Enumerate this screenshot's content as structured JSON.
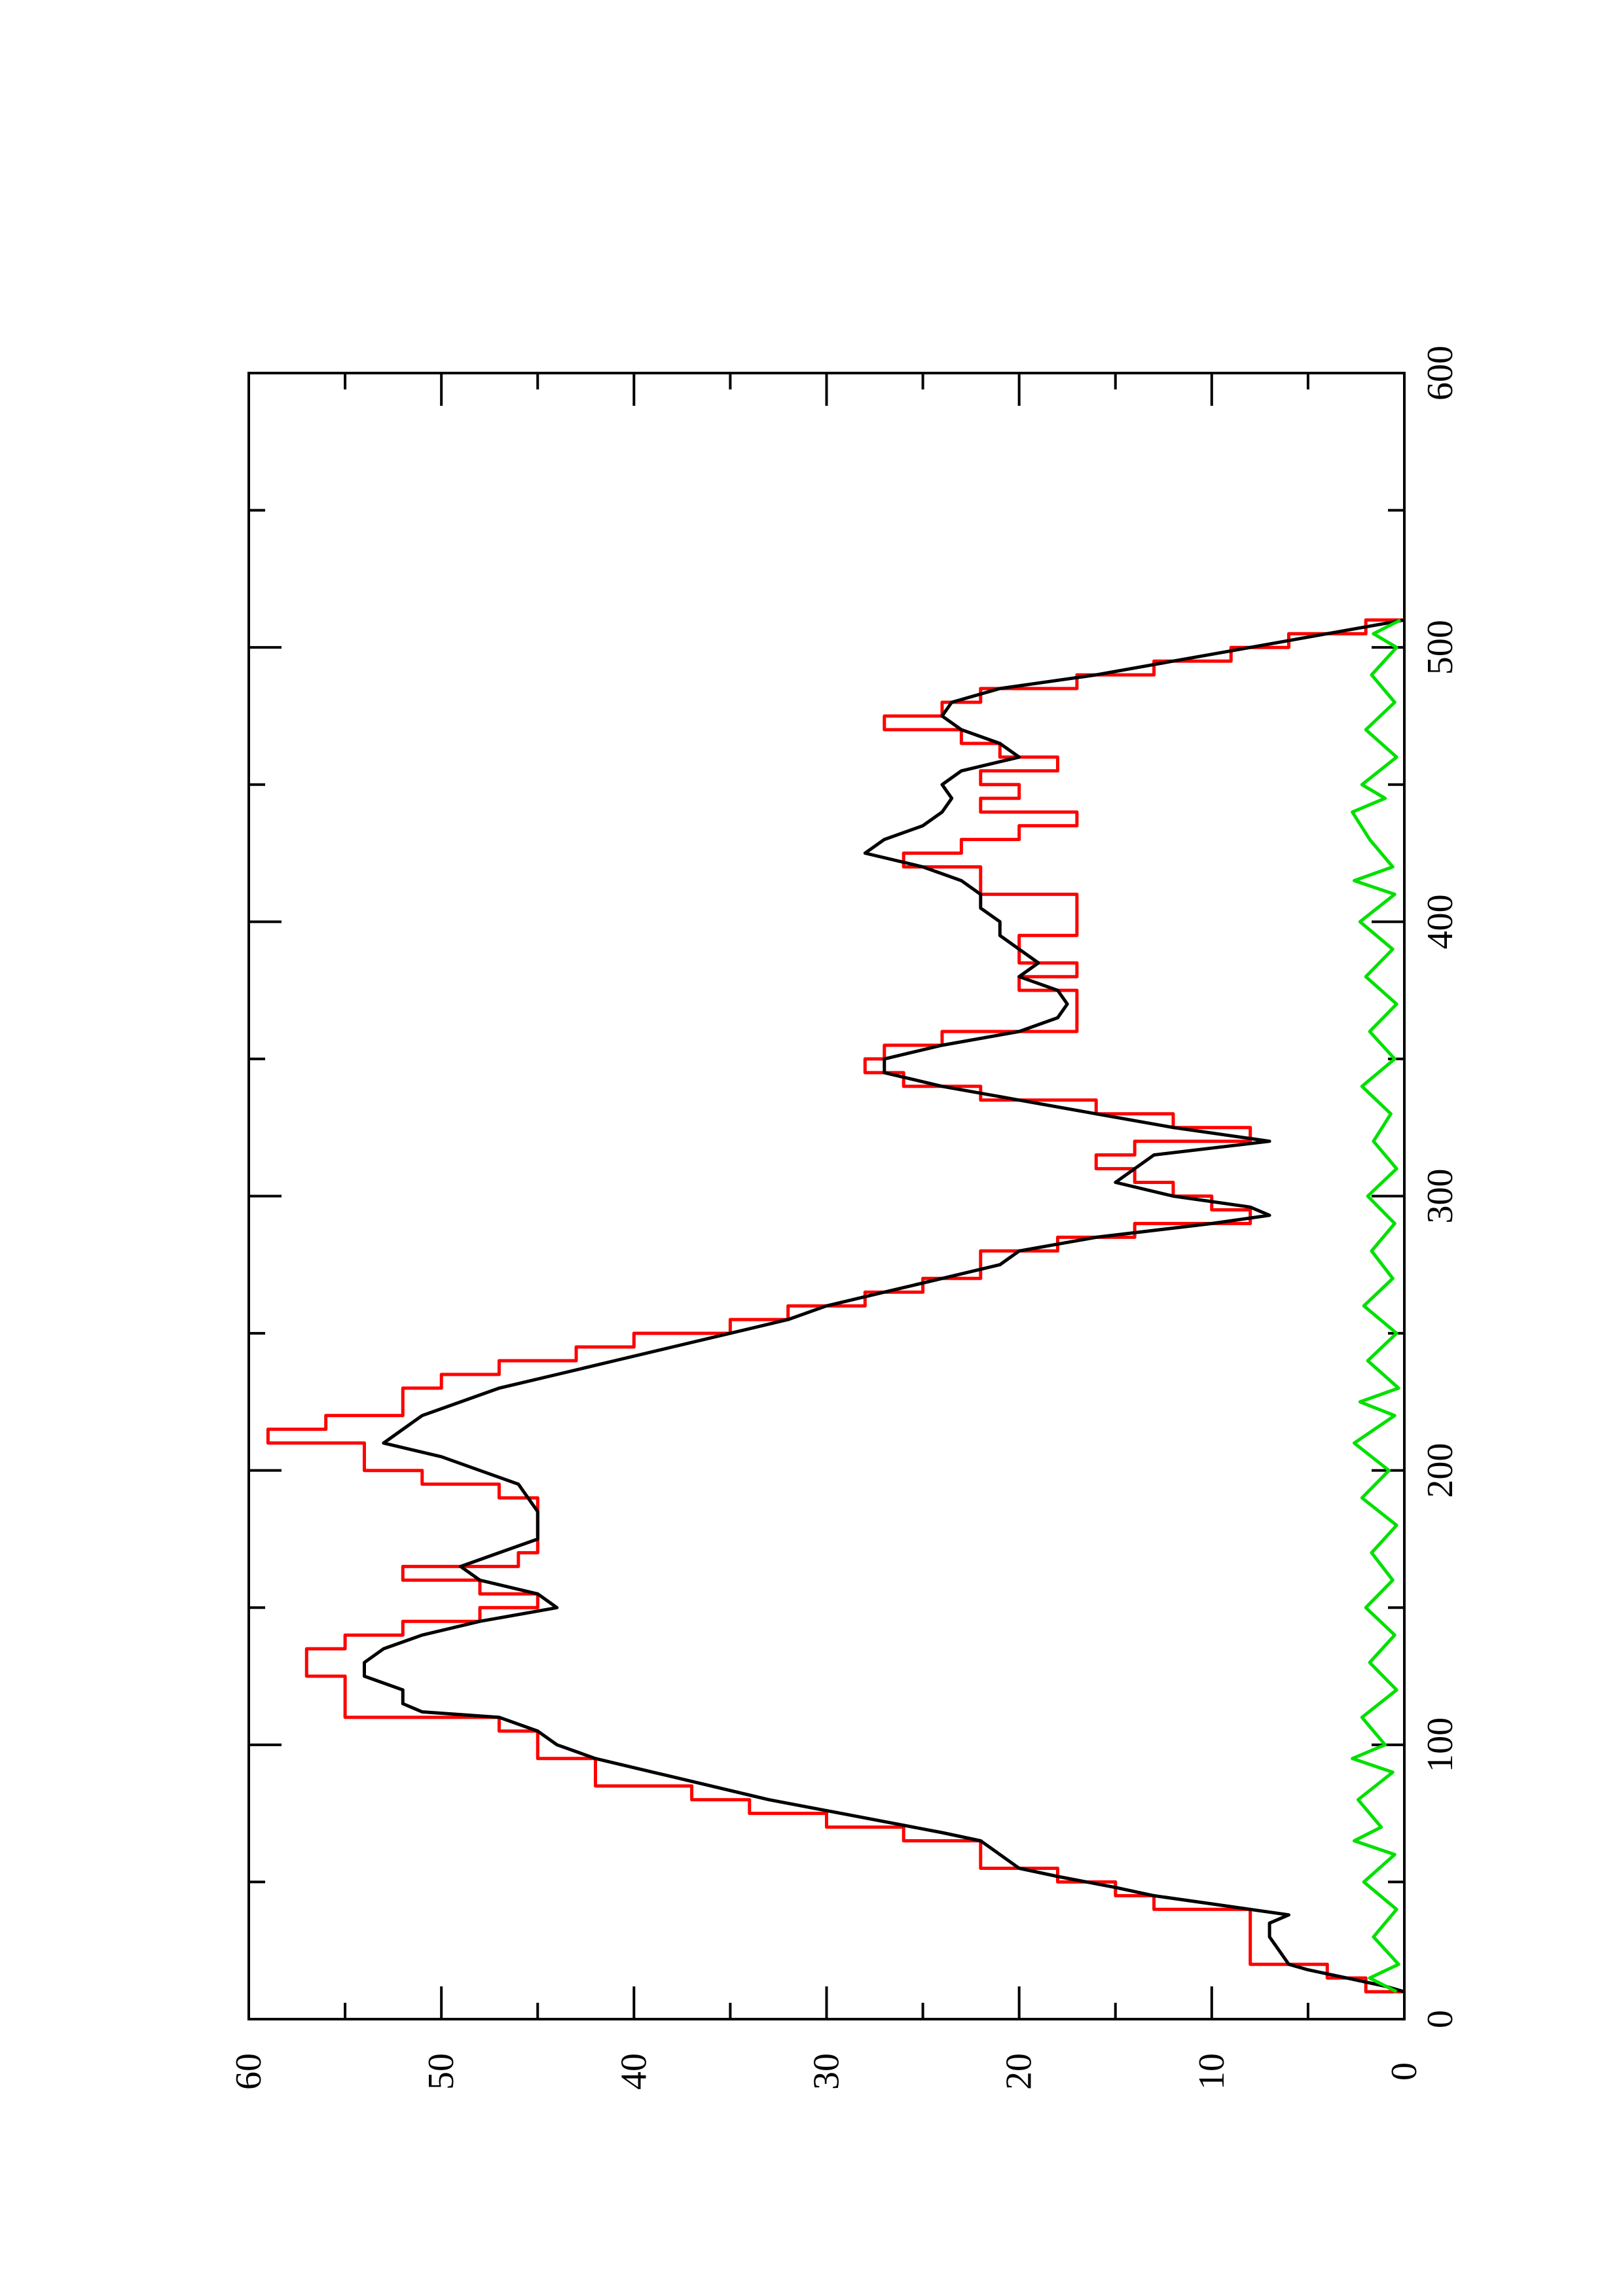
{
  "chart_data": {
    "type": "line",
    "title": "",
    "xlabel": "",
    "ylabel": "",
    "xlim": [
      0,
      600
    ],
    "ylim": [
      0,
      60
    ],
    "grid": false,
    "legend": "none",
    "orientation": "rotated 90° counter-clockwise (x axis runs bottom-to-top along the right edge)",
    "x_ticks": [
      0,
      100,
      200,
      300,
      400,
      500,
      600
    ],
    "x_tick_labels": [
      "0",
      "100",
      "200",
      "300",
      "400",
      "500",
      "600"
    ],
    "x_minor_ticks": [
      50,
      150,
      250,
      350,
      450,
      550
    ],
    "y_ticks": [
      0,
      10,
      20,
      30,
      40,
      50,
      60
    ],
    "y_tick_labels": [
      "0",
      "10",
      "20",
      "30",
      "40",
      "50",
      "60"
    ],
    "y_minor_ticks": [
      5,
      15,
      25,
      35,
      45,
      55
    ],
    "series": [
      {
        "color": "#ff0000",
        "step": true,
        "points": [
          [
            10,
            0
          ],
          [
            10,
            2
          ],
          [
            15,
            2
          ],
          [
            15,
            4
          ],
          [
            20,
            4
          ],
          [
            20,
            8
          ],
          [
            40,
            8
          ],
          [
            40,
            13
          ],
          [
            45,
            13
          ],
          [
            45,
            15
          ],
          [
            50,
            15
          ],
          [
            50,
            18
          ],
          [
            55,
            18
          ],
          [
            55,
            22
          ],
          [
            65,
            22
          ],
          [
            65,
            26
          ],
          [
            70,
            26
          ],
          [
            70,
            30
          ],
          [
            75,
            30
          ],
          [
            75,
            34
          ],
          [
            80,
            34
          ],
          [
            80,
            37
          ],
          [
            85,
            37
          ],
          [
            85,
            42
          ],
          [
            95,
            42
          ],
          [
            95,
            45
          ],
          [
            105,
            45
          ],
          [
            105,
            47
          ],
          [
            110,
            47
          ],
          [
            110,
            55
          ],
          [
            125,
            55
          ],
          [
            125,
            57
          ],
          [
            135,
            57
          ],
          [
            135,
            55
          ],
          [
            140,
            55
          ],
          [
            140,
            52
          ],
          [
            145,
            52
          ],
          [
            145,
            48
          ],
          [
            150,
            48
          ],
          [
            150,
            45
          ],
          [
            155,
            45
          ],
          [
            155,
            48
          ],
          [
            160,
            48
          ],
          [
            160,
            52
          ],
          [
            165,
            52
          ],
          [
            165,
            46
          ],
          [
            170,
            46
          ],
          [
            170,
            45
          ],
          [
            190,
            45
          ],
          [
            190,
            47
          ],
          [
            195,
            47
          ],
          [
            195,
            51
          ],
          [
            200,
            51
          ],
          [
            200,
            54
          ],
          [
            210,
            54
          ],
          [
            210,
            59
          ],
          [
            215,
            59
          ],
          [
            215,
            56
          ],
          [
            220,
            56
          ],
          [
            220,
            52
          ],
          [
            230,
            52
          ],
          [
            230,
            50
          ],
          [
            235,
            50
          ],
          [
            235,
            47
          ],
          [
            240,
            47
          ],
          [
            240,
            43
          ],
          [
            245,
            43
          ],
          [
            245,
            40
          ],
          [
            250,
            40
          ],
          [
            250,
            35
          ],
          [
            255,
            35
          ],
          [
            255,
            32
          ],
          [
            260,
            32
          ],
          [
            260,
            28
          ],
          [
            265,
            28
          ],
          [
            265,
            25
          ],
          [
            270,
            25
          ],
          [
            270,
            22
          ],
          [
            280,
            22
          ],
          [
            280,
            18
          ],
          [
            285,
            18
          ],
          [
            285,
            14
          ],
          [
            290,
            14
          ],
          [
            290,
            8
          ],
          [
            295,
            8
          ],
          [
            295,
            10
          ],
          [
            300,
            10
          ],
          [
            300,
            12
          ],
          [
            305,
            12
          ],
          [
            305,
            14
          ],
          [
            310,
            14
          ],
          [
            310,
            16
          ],
          [
            315,
            16
          ],
          [
            315,
            14
          ],
          [
            320,
            14
          ],
          [
            320,
            8
          ],
          [
            325,
            8
          ],
          [
            325,
            12
          ],
          [
            330,
            12
          ],
          [
            330,
            16
          ],
          [
            335,
            16
          ],
          [
            335,
            22
          ],
          [
            340,
            22
          ],
          [
            340,
            26
          ],
          [
            345,
            26
          ],
          [
            345,
            28
          ],
          [
            350,
            28
          ],
          [
            350,
            27
          ],
          [
            355,
            27
          ],
          [
            355,
            24
          ],
          [
            360,
            24
          ],
          [
            360,
            17
          ],
          [
            375,
            17
          ],
          [
            375,
            20
          ],
          [
            380,
            20
          ],
          [
            380,
            17
          ],
          [
            385,
            17
          ],
          [
            385,
            20
          ],
          [
            395,
            20
          ],
          [
            395,
            17
          ],
          [
            410,
            17
          ],
          [
            410,
            22
          ],
          [
            420,
            22
          ],
          [
            420,
            26
          ],
          [
            425,
            26
          ],
          [
            425,
            23
          ],
          [
            430,
            23
          ],
          [
            430,
            20
          ],
          [
            435,
            20
          ],
          [
            435,
            17
          ],
          [
            440,
            17
          ],
          [
            440,
            22
          ],
          [
            445,
            22
          ],
          [
            445,
            20
          ],
          [
            450,
            20
          ],
          [
            450,
            22
          ],
          [
            455,
            22
          ],
          [
            455,
            18
          ],
          [
            460,
            18
          ],
          [
            460,
            21
          ],
          [
            465,
            21
          ],
          [
            465,
            23
          ],
          [
            470,
            23
          ],
          [
            470,
            27
          ],
          [
            475,
            27
          ],
          [
            475,
            24
          ],
          [
            480,
            24
          ],
          [
            480,
            22
          ],
          [
            485,
            22
          ],
          [
            485,
            17
          ],
          [
            490,
            17
          ],
          [
            490,
            13
          ],
          [
            495,
            13
          ],
          [
            495,
            9
          ],
          [
            500,
            9
          ],
          [
            500,
            6
          ],
          [
            505,
            6
          ],
          [
            505,
            2
          ],
          [
            510,
            2
          ],
          [
            510,
            0
          ]
        ]
      },
      {
        "color": "#000000",
        "step": false,
        "points": [
          [
            10,
            0
          ],
          [
            12,
            1
          ],
          [
            15,
            3
          ],
          [
            18,
            5
          ],
          [
            20,
            6
          ],
          [
            25,
            6.5
          ],
          [
            30,
            7
          ],
          [
            35,
            7
          ],
          [
            38,
            6
          ],
          [
            42,
            10
          ],
          [
            45,
            13
          ],
          [
            48,
            15
          ],
          [
            52,
            18
          ],
          [
            55,
            20
          ],
          [
            60,
            21
          ],
          [
            65,
            22
          ],
          [
            68,
            24
          ],
          [
            72,
            27
          ],
          [
            76,
            30
          ],
          [
            80,
            33
          ],
          [
            85,
            36
          ],
          [
            90,
            39
          ],
          [
            95,
            42
          ],
          [
            100,
            44
          ],
          [
            105,
            45
          ],
          [
            110,
            47
          ],
          [
            112,
            51
          ],
          [
            115,
            52
          ],
          [
            120,
            52
          ],
          [
            125,
            54
          ],
          [
            130,
            54
          ],
          [
            135,
            53
          ],
          [
            140,
            51
          ],
          [
            145,
            48
          ],
          [
            150,
            44
          ],
          [
            155,
            45
          ],
          [
            160,
            48
          ],
          [
            165,
            49
          ],
          [
            170,
            47
          ],
          [
            175,
            45
          ],
          [
            180,
            45
          ],
          [
            185,
            45
          ],
          [
            190,
            45.5
          ],
          [
            195,
            46
          ],
          [
            200,
            48
          ],
          [
            205,
            50
          ],
          [
            210,
            53
          ],
          [
            215,
            52
          ],
          [
            220,
            51
          ],
          [
            225,
            49
          ],
          [
            230,
            47
          ],
          [
            235,
            44
          ],
          [
            240,
            41
          ],
          [
            245,
            38
          ],
          [
            250,
            35
          ],
          [
            255,
            32
          ],
          [
            260,
            30
          ],
          [
            265,
            27
          ],
          [
            270,
            24
          ],
          [
            275,
            21
          ],
          [
            280,
            20
          ],
          [
            285,
            16
          ],
          [
            290,
            10
          ],
          [
            293,
            7
          ],
          [
            296,
            8
          ],
          [
            300,
            12
          ],
          [
            305,
            15
          ],
          [
            310,
            14
          ],
          [
            315,
            13
          ],
          [
            320,
            7
          ],
          [
            325,
            12
          ],
          [
            330,
            16
          ],
          [
            335,
            20
          ],
          [
            340,
            24
          ],
          [
            345,
            27
          ],
          [
            350,
            27
          ],
          [
            355,
            24
          ],
          [
            360,
            20
          ],
          [
            365,
            18
          ],
          [
            370,
            17.5
          ],
          [
            375,
            18
          ],
          [
            380,
            20
          ],
          [
            385,
            19
          ],
          [
            390,
            20
          ],
          [
            395,
            21
          ],
          [
            400,
            21
          ],
          [
            405,
            22
          ],
          [
            410,
            22
          ],
          [
            415,
            23
          ],
          [
            420,
            25
          ],
          [
            425,
            28
          ],
          [
            430,
            27
          ],
          [
            435,
            25
          ],
          [
            440,
            24
          ],
          [
            445,
            23.5
          ],
          [
            450,
            24
          ],
          [
            455,
            23
          ],
          [
            460,
            20
          ],
          [
            465,
            21
          ],
          [
            470,
            23
          ],
          [
            475,
            24
          ],
          [
            480,
            23.5
          ],
          [
            485,
            21
          ],
          [
            490,
            16
          ],
          [
            495,
            12
          ],
          [
            500,
            8
          ],
          [
            505,
            4
          ],
          [
            510,
            0
          ]
        ]
      },
      {
        "color": "#00e000",
        "step": false,
        "points": [
          [
            10,
            0.4
          ],
          [
            15,
            1.8
          ],
          [
            20,
            0.3
          ],
          [
            30,
            1.6
          ],
          [
            40,
            0.4
          ],
          [
            50,
            2.1
          ],
          [
            60,
            0.5
          ],
          [
            65,
            2.6
          ],
          [
            70,
            1.2
          ],
          [
            80,
            2.4
          ],
          [
            90,
            0.6
          ],
          [
            95,
            2.7
          ],
          [
            100,
            1.0
          ],
          [
            110,
            2.2
          ],
          [
            120,
            0.4
          ],
          [
            130,
            1.8
          ],
          [
            140,
            0.5
          ],
          [
            150,
            2.0
          ],
          [
            160,
            0.6
          ],
          [
            170,
            1.7
          ],
          [
            180,
            0.4
          ],
          [
            190,
            2.2
          ],
          [
            200,
            0.8
          ],
          [
            210,
            2.6
          ],
          [
            220,
            0.5
          ],
          [
            225,
            2.3
          ],
          [
            230,
            0.3
          ],
          [
            240,
            1.9
          ],
          [
            250,
            0.4
          ],
          [
            260,
            2.1
          ],
          [
            270,
            0.6
          ],
          [
            280,
            1.7
          ],
          [
            290,
            0.5
          ],
          [
            300,
            1.9
          ],
          [
            310,
            0.4
          ],
          [
            320,
            1.6
          ],
          [
            330,
            0.7
          ],
          [
            340,
            2.2
          ],
          [
            350,
            0.5
          ],
          [
            360,
            1.8
          ],
          [
            370,
            0.4
          ],
          [
            380,
            2.0
          ],
          [
            390,
            0.6
          ],
          [
            400,
            2.3
          ],
          [
            410,
            0.5
          ],
          [
            415,
            2.6
          ],
          [
            420,
            0.6
          ],
          [
            430,
            1.8
          ],
          [
            440,
            2.7
          ],
          [
            445,
            1.0
          ],
          [
            450,
            2.2
          ],
          [
            460,
            0.4
          ],
          [
            470,
            2.0
          ],
          [
            480,
            0.5
          ],
          [
            490,
            1.7
          ],
          [
            500,
            0.4
          ],
          [
            505,
            1.6
          ],
          [
            510,
            0.2
          ]
        ]
      }
    ]
  }
}
